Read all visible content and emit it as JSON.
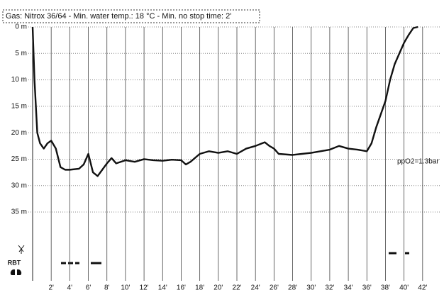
{
  "chart_data": {
    "type": "line",
    "title": "Gas: Nitrox 36/64  -  Min. water temp.: 18 °C  -  Min. no stop time: 2'",
    "annotation": "ppO2=1.3bar",
    "marker_label": "RBT",
    "x": [
      0,
      0.2,
      0.5,
      0.8,
      1.2,
      1.6,
      2,
      2.5,
      3,
      3.5,
      4,
      5,
      5.5,
      6,
      6.5,
      7,
      7.5,
      8,
      8.5,
      9,
      10,
      11,
      12,
      13,
      14,
      15,
      16,
      16.5,
      17,
      18,
      19,
      20,
      21,
      22,
      23,
      24,
      25,
      25.5,
      26,
      26.5,
      28,
      29,
      30,
      31,
      32,
      33,
      34,
      35,
      36,
      36.5,
      37,
      38,
      38.5,
      39,
      39.5,
      40,
      40.5,
      41,
      41.5
    ],
    "values": [
      0,
      10,
      20,
      22,
      23,
      22,
      21.5,
      23,
      26.5,
      27,
      27,
      26.8,
      26,
      24,
      27.5,
      28.2,
      27,
      25.8,
      24.8,
      25.8,
      25.2,
      25.5,
      25,
      25.2,
      25.3,
      25.1,
      25.2,
      26,
      25.5,
      24,
      23.5,
      23.8,
      23.5,
      24,
      23,
      22.5,
      21.8,
      22.5,
      23,
      24,
      24.2,
      24,
      23.8,
      23.5,
      23.2,
      22.5,
      23,
      23.2,
      23.5,
      22,
      19,
      14,
      10,
      7,
      5,
      3,
      1.5,
      0.2,
      0
    ],
    "color": "#111111",
    "xlim": [
      0,
      44
    ],
    "ylim": [
      0,
      48
    ],
    "y_inverted": true,
    "grid": true,
    "xticks": [
      {
        "value": 2,
        "label": "2'"
      },
      {
        "value": 4,
        "label": "4'"
      },
      {
        "value": 6,
        "label": "6'"
      },
      {
        "value": 8,
        "label": "8'"
      },
      {
        "value": 10,
        "label": "10'"
      },
      {
        "value": 12,
        "label": "12'"
      },
      {
        "value": 14,
        "label": "14'"
      },
      {
        "value": 16,
        "label": "16'"
      },
      {
        "value": 18,
        "label": "18'"
      },
      {
        "value": 20,
        "label": "20'"
      },
      {
        "value": 22,
        "label": "22'"
      },
      {
        "value": 24,
        "label": "24'"
      },
      {
        "value": 26,
        "label": "26'"
      },
      {
        "value": 28,
        "label": "28'"
      },
      {
        "value": 30,
        "label": "30'"
      },
      {
        "value": 32,
        "label": "32'"
      },
      {
        "value": 34,
        "label": "34'"
      },
      {
        "value": 36,
        "label": "36'"
      },
      {
        "value": 38,
        "label": "38'"
      },
      {
        "value": 40,
        "label": "40'"
      },
      {
        "value": 42,
        "label": "42'"
      }
    ],
    "yticks": [
      {
        "value": 0,
        "label": "0 m"
      },
      {
        "value": 5,
        "label": "5 m"
      },
      {
        "value": 10,
        "label": "10 m"
      },
      {
        "value": 15,
        "label": "15 m"
      },
      {
        "value": 20,
        "label": "20 m"
      },
      {
        "value": 25,
        "label": "25 m"
      },
      {
        "value": 30,
        "label": "30 m"
      },
      {
        "value": 35,
        "label": "35 m"
      }
    ]
  }
}
